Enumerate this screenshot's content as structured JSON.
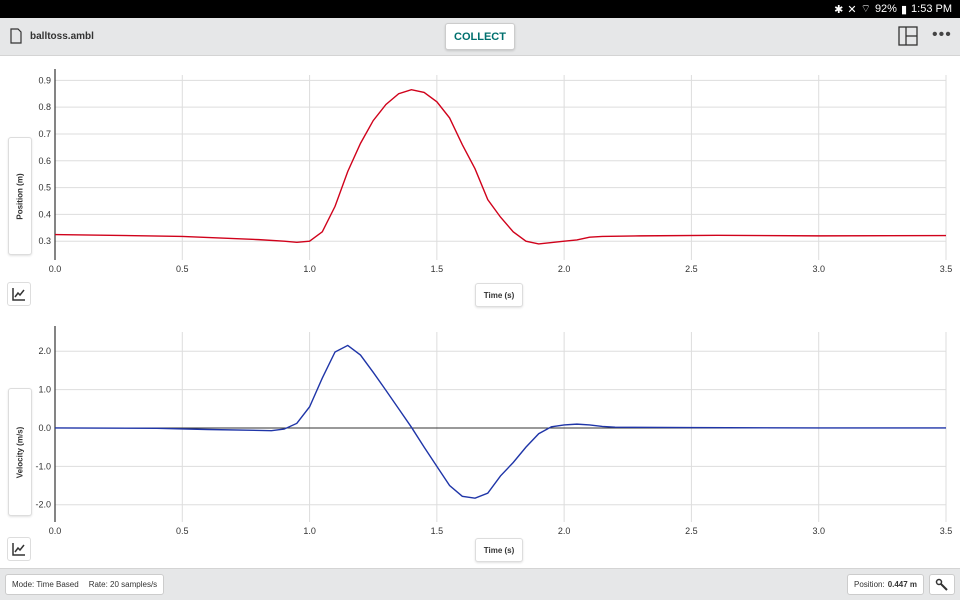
{
  "status_bar": {
    "battery": "92%",
    "time": "1:53 PM"
  },
  "toolbar": {
    "file_name": "balltoss.ambl",
    "collect_label": "COLLECT"
  },
  "charts": {
    "position": {
      "ylabel": "Position (m)",
      "xlabel": "Time (s)"
    },
    "velocity": {
      "ylabel": "Velocity (m/s)",
      "xlabel": "Time (s)"
    }
  },
  "footer": {
    "mode": "Mode: Time Based",
    "rate": "Rate: 20 samples/s",
    "position_label": "Position:",
    "position_value": "0.447 m"
  },
  "chart_data": [
    {
      "type": "line",
      "title": "",
      "xlabel": "Time (s)",
      "ylabel": "Position (m)",
      "xlim": [
        0,
        3.5
      ],
      "ylim": [
        0.23,
        0.92
      ],
      "xticks": [
        0,
        0.5,
        1,
        1.5,
        2,
        2.5,
        3,
        3.5
      ],
      "xtick_labels": [
        "0.0",
        "0.5",
        "1.0",
        "1.5",
        "2.0",
        "2.5",
        "3.0",
        "3.5"
      ],
      "yticks": [
        0.3,
        0.4,
        0.5,
        0.6,
        0.7,
        0.8,
        0.9
      ],
      "ytick_labels": [
        "0.3",
        "0.4",
        "0.5",
        "0.6",
        "0.7",
        "0.8",
        "0.9"
      ],
      "series": [
        {
          "name": "Position",
          "color": "#d0021b",
          "x": [
            0,
            0.5,
            0.8,
            0.9,
            0.95,
            1.0,
            1.05,
            1.1,
            1.15,
            1.2,
            1.25,
            1.3,
            1.35,
            1.4,
            1.45,
            1.5,
            1.55,
            1.6,
            1.65,
            1.7,
            1.75,
            1.8,
            1.85,
            1.9,
            1.95,
            2.0,
            2.05,
            2.1,
            2.15,
            2.3,
            2.6,
            3.0,
            3.5
          ],
          "y": [
            0.325,
            0.318,
            0.306,
            0.3,
            0.296,
            0.3,
            0.335,
            0.43,
            0.56,
            0.665,
            0.75,
            0.81,
            0.85,
            0.865,
            0.855,
            0.82,
            0.76,
            0.66,
            0.57,
            0.455,
            0.39,
            0.335,
            0.3,
            0.29,
            0.295,
            0.3,
            0.305,
            0.315,
            0.318,
            0.32,
            0.322,
            0.32,
            0.321
          ]
        }
      ]
    },
    {
      "type": "line",
      "title": "",
      "xlabel": "Time (s)",
      "ylabel": "Velocity (m/s)",
      "xlim": [
        0,
        3.5
      ],
      "ylim": [
        -2.45,
        2.5
      ],
      "xticks": [
        0,
        0.5,
        1,
        1.5,
        2,
        2.5,
        3,
        3.5
      ],
      "xtick_labels": [
        "0.0",
        "0.5",
        "1.0",
        "1.5",
        "2.0",
        "2.5",
        "3.0",
        "3.5"
      ],
      "yticks": [
        -2,
        -1,
        0,
        1,
        2
      ],
      "ytick_labels": [
        "-2.0",
        "-1.0",
        "0.0",
        "1.0",
        "2.0"
      ],
      "series": [
        {
          "name": "Velocity",
          "color": "#1f35a8",
          "x": [
            0,
            0.4,
            0.6,
            0.85,
            0.9,
            0.95,
            1.0,
            1.05,
            1.1,
            1.15,
            1.2,
            1.25,
            1.3,
            1.35,
            1.4,
            1.45,
            1.5,
            1.55,
            1.6,
            1.65,
            1.7,
            1.75,
            1.8,
            1.85,
            1.9,
            1.95,
            2.0,
            2.05,
            2.1,
            2.15,
            2.2,
            2.5,
            3.0,
            3.5
          ],
          "y": [
            0,
            -0.01,
            -0.04,
            -0.07,
            -0.03,
            0.12,
            0.55,
            1.3,
            1.98,
            2.15,
            1.9,
            1.45,
            0.98,
            0.5,
            0.02,
            -0.5,
            -1.0,
            -1.5,
            -1.78,
            -1.83,
            -1.7,
            -1.25,
            -0.9,
            -0.5,
            -0.15,
            0.03,
            0.08,
            0.1,
            0.08,
            0.04,
            0.02,
            0.01,
            0,
            0
          ]
        }
      ]
    }
  ]
}
